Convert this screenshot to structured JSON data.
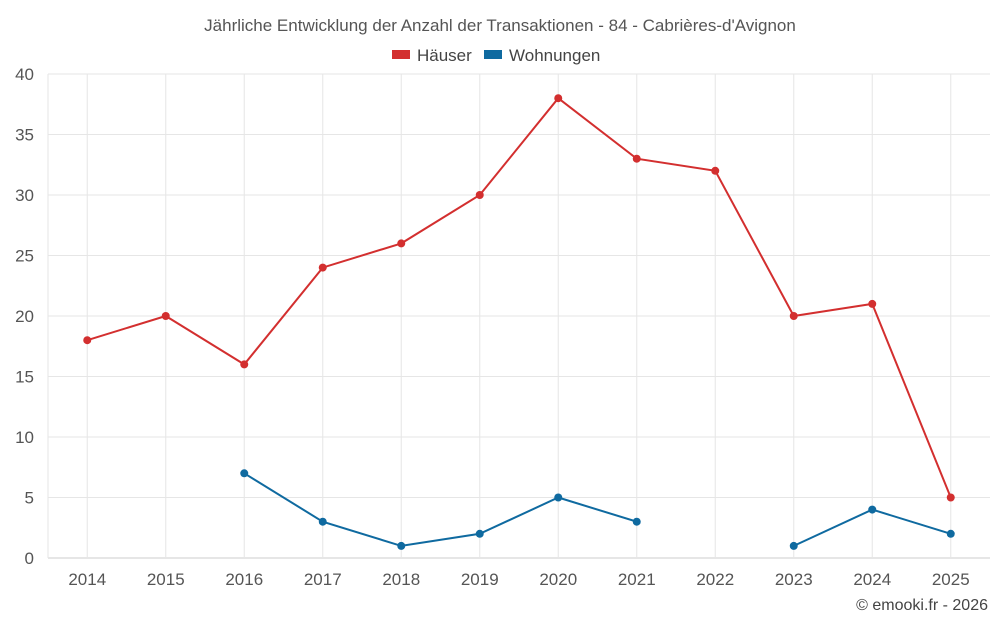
{
  "chart_data": {
    "type": "line",
    "title": "Jährliche Entwicklung der Anzahl der Transaktionen - 84 - Cabrières-d'Avignon",
    "categories": [
      "2014",
      "2015",
      "2016",
      "2017",
      "2018",
      "2019",
      "2020",
      "2021",
      "2022",
      "2023",
      "2024",
      "2025"
    ],
    "ylim": [
      0,
      40
    ],
    "yticks": [
      0,
      5,
      10,
      15,
      20,
      25,
      30,
      35,
      40
    ],
    "grid": true,
    "legend_position": "top-center",
    "series": [
      {
        "name": "Häuser",
        "color": "#d32f2f",
        "values": [
          18,
          20,
          16,
          24,
          26,
          30,
          38,
          33,
          32,
          20,
          21,
          5
        ]
      },
      {
        "name": "Wohnungen",
        "color": "#0f6aa0",
        "values": [
          null,
          null,
          7,
          3,
          1,
          2,
          5,
          3,
          null,
          1,
          4,
          2
        ]
      }
    ],
    "credit": "© emooki.fr - 2026"
  }
}
